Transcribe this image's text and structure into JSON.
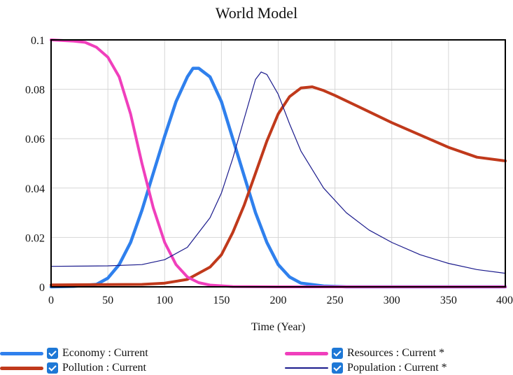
{
  "chart_data": {
    "type": "line",
    "title": "World Model",
    "xlabel": "Time (Year)",
    "ylabel": "",
    "xlim": [
      0,
      400
    ],
    "ylim": [
      0,
      0.1
    ],
    "grid": true,
    "legend_placement": "bottom",
    "x_ticks": [
      "0",
      "50",
      "100",
      "150",
      "200",
      "250",
      "300",
      "350",
      "400"
    ],
    "y_ticks": [
      "0",
      "0.02",
      "0.04",
      "0.06",
      "0.08",
      "0.1"
    ],
    "series": [
      {
        "name": "Economy : Current",
        "color": "#2f80ed",
        "points": [
          [
            0,
            0
          ],
          [
            20,
            0.0002
          ],
          [
            40,
            0.001
          ],
          [
            50,
            0.0035
          ],
          [
            60,
            0.009
          ],
          [
            70,
            0.018
          ],
          [
            80,
            0.031
          ],
          [
            90,
            0.046
          ],
          [
            100,
            0.061
          ],
          [
            110,
            0.075
          ],
          [
            120,
            0.085
          ],
          [
            125,
            0.0885
          ],
          [
            130,
            0.0885
          ],
          [
            140,
            0.085
          ],
          [
            150,
            0.075
          ],
          [
            160,
            0.06
          ],
          [
            170,
            0.045
          ],
          [
            180,
            0.03
          ],
          [
            190,
            0.018
          ],
          [
            200,
            0.009
          ],
          [
            210,
            0.004
          ],
          [
            220,
            0.0015
          ],
          [
            240,
            0.0003
          ],
          [
            260,
            0
          ],
          [
            400,
            0
          ]
        ]
      },
      {
        "name": "Pollution : Current",
        "color": "#c0391b",
        "points": [
          [
            0,
            0.0008
          ],
          [
            50,
            0.0009
          ],
          [
            80,
            0.001
          ],
          [
            100,
            0.0015
          ],
          [
            120,
            0.003
          ],
          [
            140,
            0.008
          ],
          [
            150,
            0.013
          ],
          [
            160,
            0.022
          ],
          [
            170,
            0.033
          ],
          [
            180,
            0.046
          ],
          [
            190,
            0.059
          ],
          [
            200,
            0.07
          ],
          [
            210,
            0.077
          ],
          [
            220,
            0.0805
          ],
          [
            230,
            0.081
          ],
          [
            240,
            0.0795
          ],
          [
            250,
            0.0775
          ],
          [
            275,
            0.072
          ],
          [
            300,
            0.0665
          ],
          [
            325,
            0.0615
          ],
          [
            350,
            0.0565
          ],
          [
            375,
            0.0525
          ],
          [
            400,
            0.051
          ]
        ]
      },
      {
        "name": "Resources : Current *",
        "color": "#f03fbc",
        "points": [
          [
            0,
            0.1
          ],
          [
            20,
            0.0995
          ],
          [
            30,
            0.099
          ],
          [
            40,
            0.097
          ],
          [
            50,
            0.093
          ],
          [
            60,
            0.085
          ],
          [
            70,
            0.07
          ],
          [
            80,
            0.05
          ],
          [
            90,
            0.032
          ],
          [
            100,
            0.018
          ],
          [
            110,
            0.009
          ],
          [
            120,
            0.004
          ],
          [
            130,
            0.0017
          ],
          [
            140,
            0.0007
          ],
          [
            160,
            0.0001
          ],
          [
            200,
            0
          ],
          [
            400,
            0
          ]
        ]
      },
      {
        "name": "Population : Current *",
        "color": "#1a1a8c",
        "points": [
          [
            0,
            0.0083
          ],
          [
            50,
            0.0085
          ],
          [
            80,
            0.009
          ],
          [
            100,
            0.011
          ],
          [
            120,
            0.016
          ],
          [
            140,
            0.028
          ],
          [
            150,
            0.038
          ],
          [
            160,
            0.052
          ],
          [
            170,
            0.068
          ],
          [
            180,
            0.084
          ],
          [
            185,
            0.087
          ],
          [
            190,
            0.086
          ],
          [
            200,
            0.078
          ],
          [
            210,
            0.066
          ],
          [
            220,
            0.055
          ],
          [
            240,
            0.04
          ],
          [
            260,
            0.03
          ],
          [
            280,
            0.023
          ],
          [
            300,
            0.018
          ],
          [
            325,
            0.013
          ],
          [
            350,
            0.0095
          ],
          [
            375,
            0.007
          ],
          [
            400,
            0.0055
          ]
        ]
      }
    ]
  }
}
